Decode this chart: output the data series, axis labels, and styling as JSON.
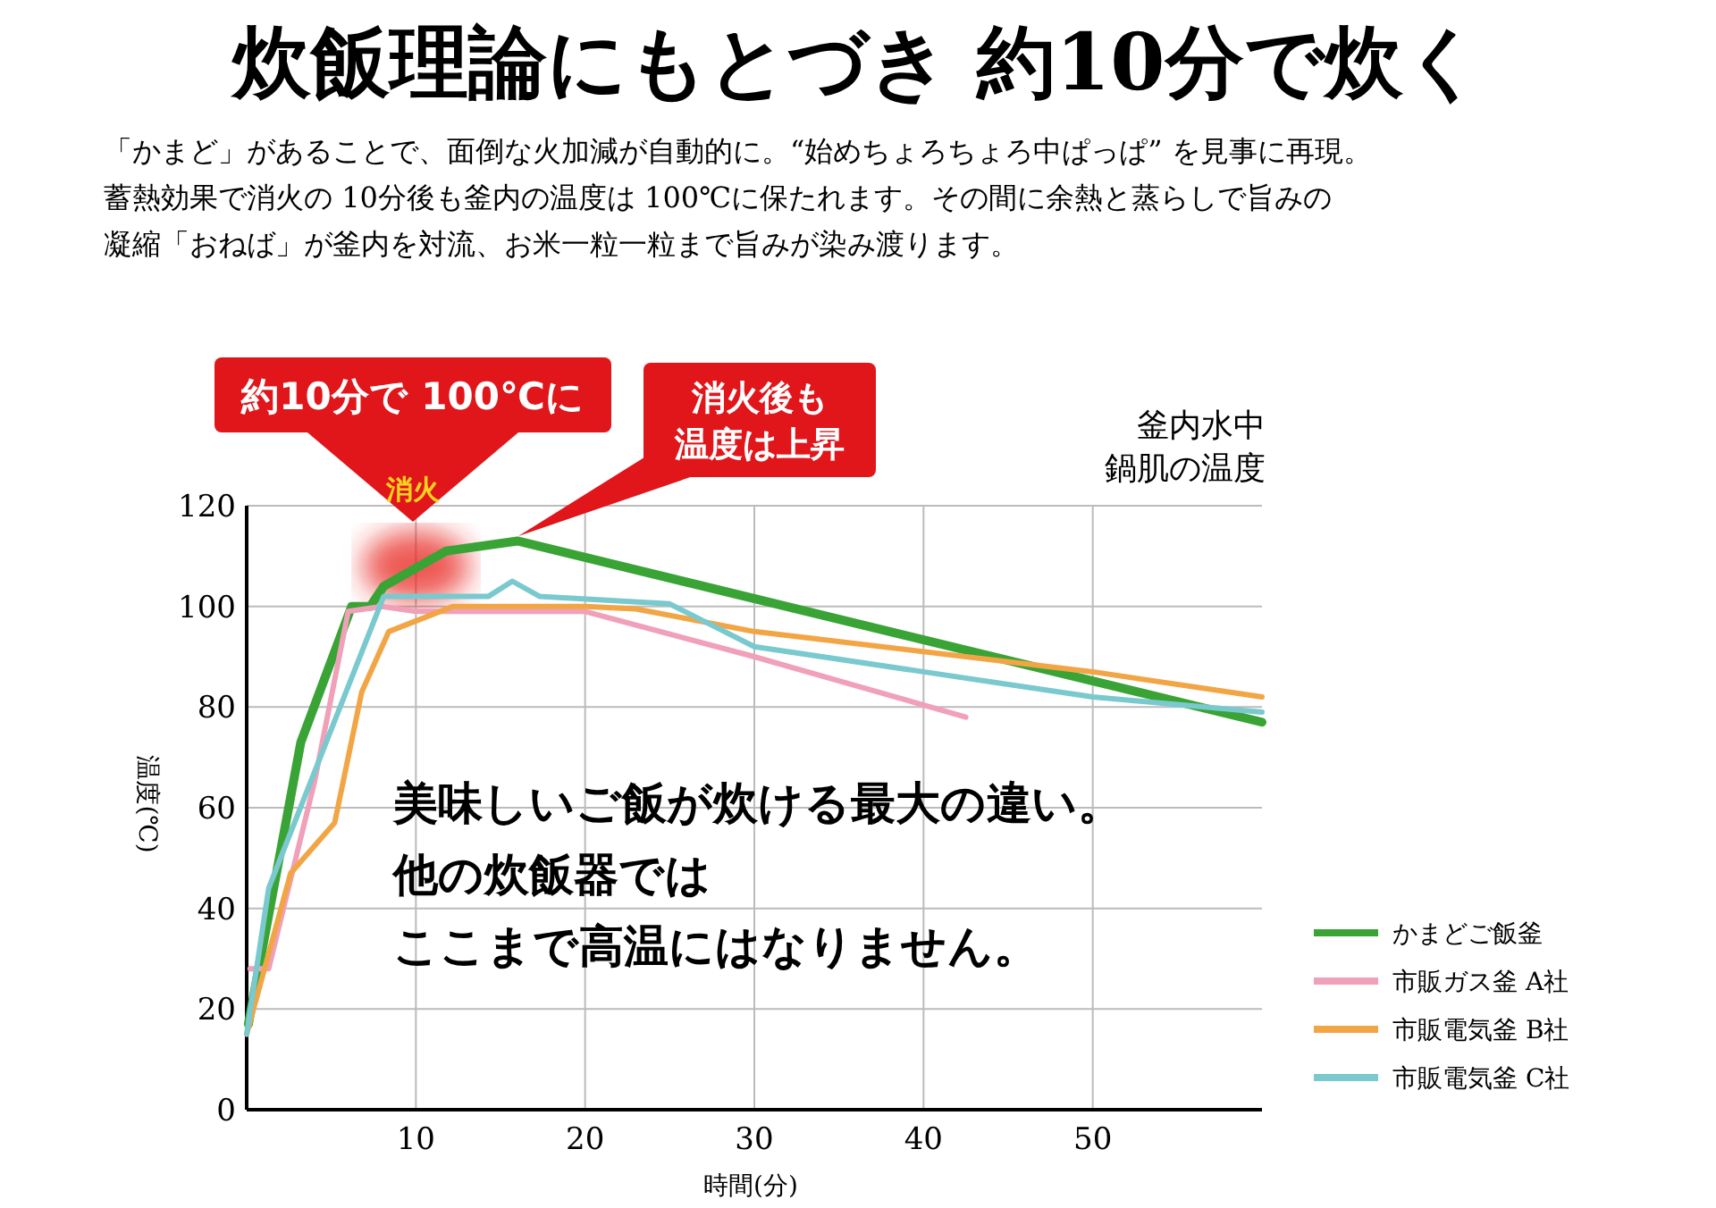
{
  "chart_data": {
    "type": "line",
    "title": "炊飯理論にもとづき 約10分で炊く",
    "subtitle": "「かまど」があることで、面倒な火加減が自動的に。“始めちょろちょろ中ぱっぱ” を見事に再現。蓄熱効果で消火の 10分後も釜内の温度は 100℃に保たれます。その間に余熱と蒸らしで旨みの凝縮「おねば」が釜内を対流、お米一粒一粒まで旨みが染み渡ります。",
    "xlabel": "時間(分)",
    "ylabel": "温度(℃)",
    "xlim": [
      0,
      60
    ],
    "ylim": [
      0,
      120
    ],
    "xticks": [
      10,
      20,
      30,
      40,
      50
    ],
    "yticks": [
      0,
      20,
      40,
      60,
      80,
      100,
      120
    ],
    "grid": true,
    "legend": "bottom right",
    "line_style": "solid",
    "marker": "none",
    "annotations": [
      "約10分で 100℃に",
      "消火後も温度は上昇",
      "消火",
      "釜内水中鍋肌の温度",
      "美味しいご飯が炊ける最大の違い。",
      "他の炊飯器では",
      "ここまで高温にはなりません。"
    ],
    "series": [
      {
        "name": "かまどご飯釜",
        "color": "#3aa335",
        "x": [
          0.1,
          3.2,
          6.2,
          7.3,
          8.1,
          11.8,
          16,
          60
        ],
        "values": [
          17,
          73,
          100,
          100,
          104,
          111,
          113,
          77
        ]
      },
      {
        "name": "市販ガス釜 A社",
        "color": "#f0a0b8",
        "x": [
          0.2,
          1.3,
          4,
          6,
          8,
          10,
          20,
          30,
          42.5
        ],
        "values": [
          28,
          28,
          65,
          99,
          100,
          99,
          99,
          90,
          78
        ]
      },
      {
        "name": "市販電気釜 B社",
        "color": "#f2a545",
        "x": [
          0,
          2.6,
          5.2,
          6.8,
          8.4,
          12.2,
          20,
          23,
          30,
          50,
          60
        ],
        "values": [
          15,
          47,
          57,
          83,
          95,
          100,
          100,
          99.5,
          95,
          87,
          82
        ]
      },
      {
        "name": "市販電気釜 C社",
        "color": "#79c9cf",
        "x": [
          0,
          1.3,
          8.1,
          14.3,
          15.7,
          17.3,
          25,
          30,
          40,
          50,
          60
        ],
        "values": [
          15,
          44,
          102,
          102,
          105,
          102,
          100.5,
          92,
          87,
          82,
          79
        ]
      }
    ]
  }
}
